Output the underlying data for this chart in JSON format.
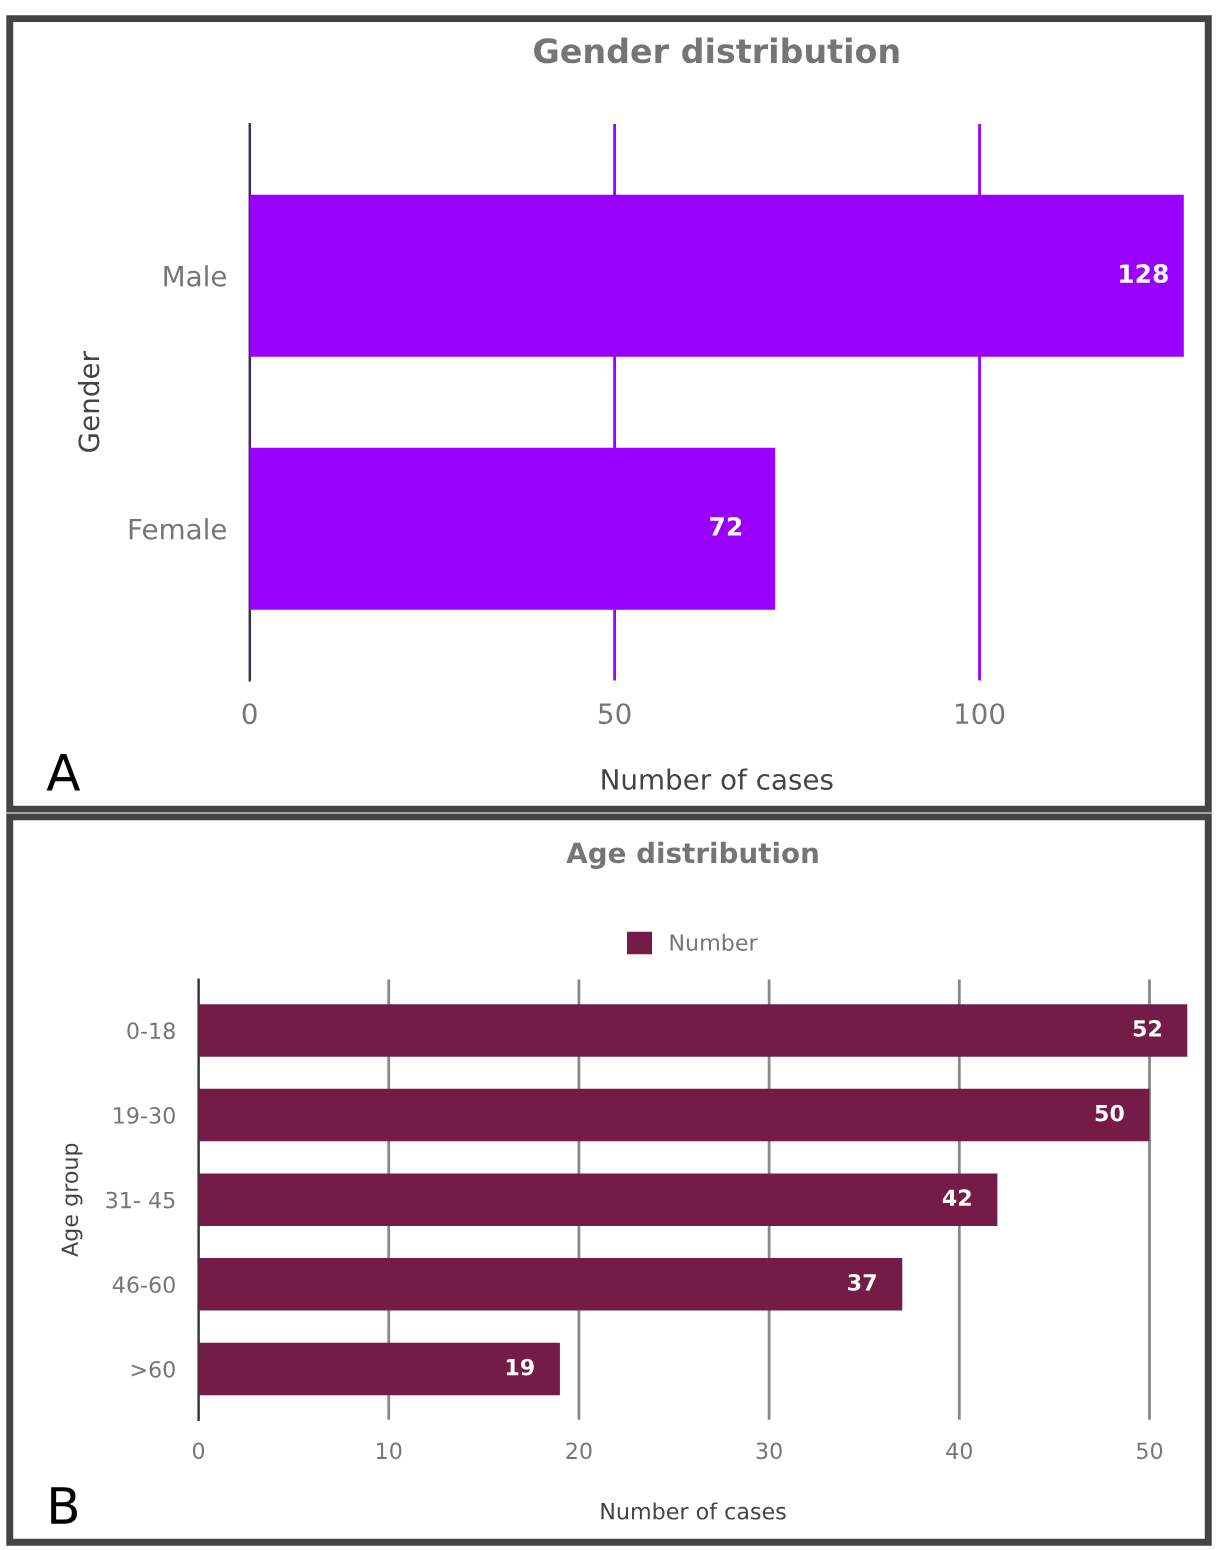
{
  "chart_data": [
    {
      "type": "bar",
      "orientation": "horizontal",
      "title": "Gender distribution",
      "xlabel": "Number of cases",
      "ylabel": "Gender",
      "categories": [
        "Male",
        "Female"
      ],
      "series": [
        {
          "color": "#9900ff",
          "values": [
            128,
            72
          ]
        }
      ],
      "xlim": [
        0,
        128
      ],
      "xticks": [
        0,
        50,
        100
      ],
      "grid": "x",
      "data_labels": true,
      "legend": false,
      "annotations": [
        "A"
      ]
    },
    {
      "type": "bar",
      "orientation": "horizontal",
      "title": "Age distribution",
      "xlabel": "Number of cases",
      "ylabel": "Age group",
      "categories": [
        "0-18",
        "19-30",
        "31- 45",
        "46-60",
        ">60"
      ],
      "series": [
        {
          "name": "Number",
          "color": "#741b47",
          "values": [
            52,
            50,
            42,
            37,
            19
          ]
        }
      ],
      "xlim": [
        0,
        52
      ],
      "xticks": [
        0,
        10,
        20,
        30,
        40,
        50
      ],
      "grid": "x",
      "data_labels": true,
      "legend": "top",
      "annotations": [
        "B"
      ]
    }
  ]
}
